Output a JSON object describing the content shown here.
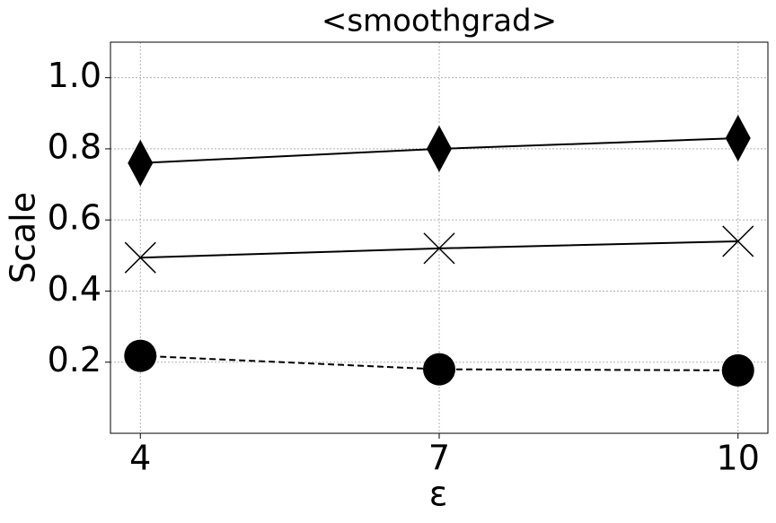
{
  "chart_data": {
    "type": "line",
    "title": "<smoothgrad>",
    "xlabel": "ε",
    "ylabel": "Scale",
    "x": [
      4,
      7,
      10
    ],
    "series": [
      {
        "color": "#000000",
        "marker": "diamond",
        "linestyle": "solid",
        "values": [
          0.76,
          0.8,
          0.83
        ]
      },
      {
        "color": "#000000",
        "marker": "x",
        "linestyle": "solid",
        "values": [
          0.494,
          0.52,
          0.54
        ]
      },
      {
        "color": "#000000",
        "marker": "circle",
        "linestyle": "dashed",
        "values": [
          0.218,
          0.18,
          0.177
        ]
      }
    ],
    "xlim": [
      3.7,
      10.3
    ],
    "xticks": [
      4,
      7,
      10
    ],
    "ylim": [
      0,
      1.1
    ],
    "yticks": [
      0.2,
      0.4,
      0.6,
      0.8,
      {
        "value": 1,
        "label": "1.0"
      }
    ],
    "grid": true
  }
}
